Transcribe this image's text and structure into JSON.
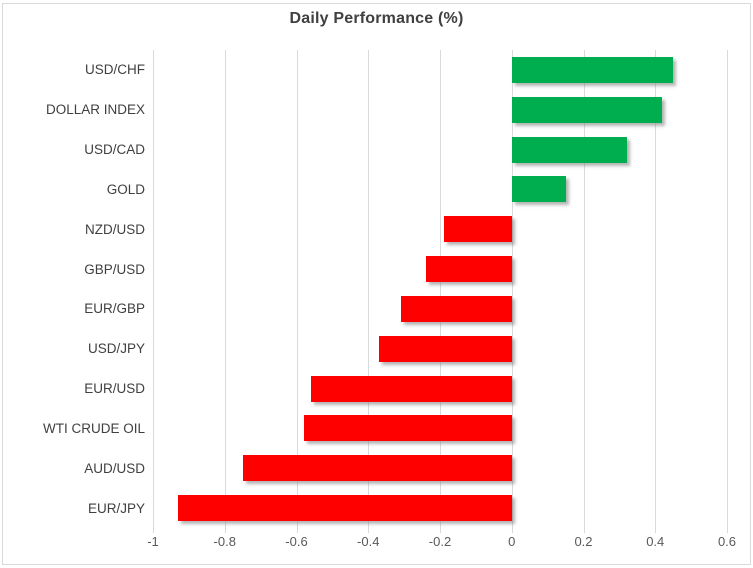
{
  "chart_data": {
    "type": "bar",
    "orientation": "horizontal",
    "title": "Daily Performance (%)",
    "categories": [
      "USD/CHF",
      "DOLLAR INDEX",
      "USD/CAD",
      "GOLD",
      "NZD/USD",
      "GBP/USD",
      "EUR/GBP",
      "USD/JPY",
      "EUR/USD",
      "WTI CRUDE OIL",
      "AUD/USD",
      "EUR/JPY"
    ],
    "values": [
      0.45,
      0.42,
      0.32,
      0.15,
      -0.19,
      -0.24,
      -0.31,
      -0.37,
      -0.56,
      -0.58,
      -0.75,
      -0.93
    ],
    "xlabel": "",
    "ylabel": "",
    "xlim": [
      -1,
      0.6
    ],
    "xticks": [
      -1,
      -0.8,
      -0.6,
      -0.4,
      -0.2,
      0,
      0.2,
      0.4,
      0.6
    ],
    "xtick_labels": [
      "-1",
      "-0.8",
      "-0.6",
      "-0.4",
      "-0.2",
      "0",
      "0.2",
      "0.4",
      "0.6"
    ],
    "grid": true,
    "legend": false,
    "colors": {
      "positive": "#00AE4F",
      "negative": "#FF0000",
      "gridline": "#D9D9D9",
      "title_text": "#404040",
      "category_text": "#404040",
      "axis_text": "#595959",
      "border": "#D9D9D9"
    }
  }
}
